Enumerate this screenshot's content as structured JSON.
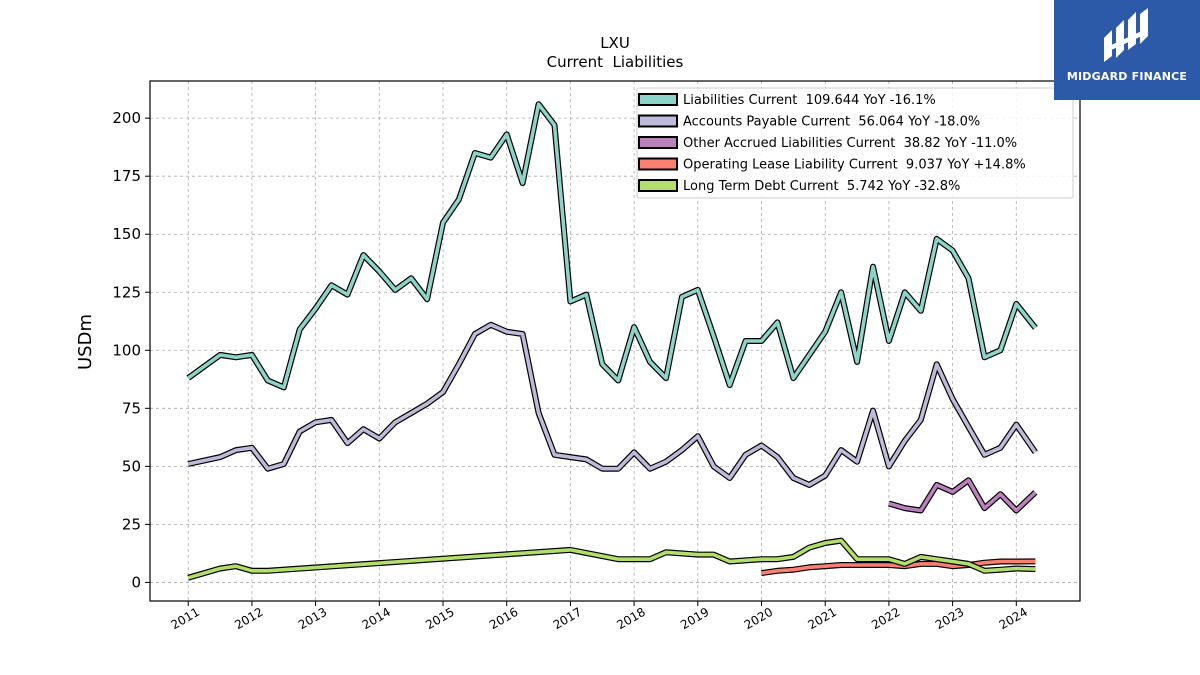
{
  "logo": {
    "text": "MIDGARD FINANCE",
    "background": "#2c5aa8"
  },
  "chart_data": {
    "type": "line",
    "title": "LXU",
    "subtitle": "Current  Liabilities",
    "xlabel": "",
    "ylabel": "USDm",
    "xlim": [
      2010.4,
      2025.0
    ],
    "ylim": [
      -8,
      216
    ],
    "x_ticks": [
      "2011",
      "2012",
      "2013",
      "2014",
      "2015",
      "2016",
      "2017",
      "2018",
      "2019",
      "2020",
      "2021",
      "2022",
      "2023",
      "2024"
    ],
    "y_ticks": [
      0,
      25,
      50,
      75,
      100,
      125,
      150,
      175,
      200
    ],
    "grid": true,
    "legend_position": "top-right",
    "series": [
      {
        "name": "Liabilities Current",
        "legend": "Liabilities Current  109.644 YoY -16.1%",
        "color": "#8dd3c7",
        "x": [
          2011.0,
          2011.5,
          2011.75,
          2012.0,
          2012.25,
          2012.5,
          2012.75,
          2013.0,
          2013.25,
          2013.5,
          2013.75,
          2014.0,
          2014.25,
          2014.5,
          2014.75,
          2015.0,
          2015.25,
          2015.5,
          2015.75,
          2016.0,
          2016.25,
          2016.5,
          2016.75,
          2017.0,
          2017.25,
          2017.5,
          2017.75,
          2018.0,
          2018.25,
          2018.5,
          2018.75,
          2019.0,
          2019.25,
          2019.5,
          2019.75,
          2020.0,
          2020.25,
          2020.5,
          2020.75,
          2021.0,
          2021.25,
          2021.5,
          2021.75,
          2022.0,
          2022.25,
          2022.5,
          2022.75,
          2023.0,
          2023.25,
          2023.5,
          2023.75,
          2024.0,
          2024.3
        ],
        "values": [
          88,
          98,
          97,
          98,
          87,
          84,
          109,
          118,
          128,
          124,
          141,
          134,
          126,
          131,
          122,
          155,
          165,
          185,
          183,
          193,
          172,
          206,
          197,
          121,
          124,
          94,
          87,
          110,
          95,
          88,
          123,
          126,
          106,
          85,
          104,
          104,
          112,
          88,
          98,
          108,
          125,
          95,
          136,
          104,
          125,
          117,
          148,
          143,
          131,
          97,
          100,
          120,
          109.644
        ]
      },
      {
        "name": "Accounts Payable Current",
        "legend": "Accounts Payable Current  56.064 YoY -18.0%",
        "color": "#bebada",
        "x": [
          2011.0,
          2011.5,
          2011.75,
          2012.0,
          2012.25,
          2012.5,
          2012.75,
          2013.0,
          2013.25,
          2013.5,
          2013.75,
          2014.0,
          2014.25,
          2014.5,
          2014.75,
          2015.0,
          2015.25,
          2015.5,
          2015.75,
          2016.0,
          2016.25,
          2016.5,
          2016.75,
          2017.0,
          2017.25,
          2017.5,
          2017.75,
          2018.0,
          2018.25,
          2018.5,
          2018.75,
          2019.0,
          2019.25,
          2019.5,
          2019.75,
          2020.0,
          2020.25,
          2020.5,
          2020.75,
          2021.0,
          2021.25,
          2021.5,
          2021.75,
          2022.0,
          2022.25,
          2022.5,
          2022.75,
          2023.0,
          2023.25,
          2023.5,
          2023.75,
          2024.0,
          2024.3
        ],
        "values": [
          51,
          54,
          57,
          58,
          49,
          51,
          65,
          69,
          70,
          60,
          66,
          62,
          69,
          73,
          77,
          82,
          94,
          107,
          111,
          108,
          107,
          73,
          55,
          54,
          53,
          49,
          49,
          56,
          49,
          52,
          57,
          63,
          50,
          45,
          55,
          59,
          54,
          45,
          42,
          46,
          57,
          52,
          74,
          50,
          61,
          70,
          94,
          79,
          67,
          55,
          58,
          68,
          56.064
        ]
      },
      {
        "name": "Other Accrued Liabilities Current",
        "legend": "Other Accrued Liabilities Current  38.82 YoY -11.0%",
        "color": "#bc80bd",
        "x": [
          2022.0,
          2022.25,
          2022.5,
          2022.75,
          2023.0,
          2023.25,
          2023.5,
          2023.75,
          2024.0,
          2024.3
        ],
        "values": [
          34,
          32,
          31,
          42,
          39,
          44,
          32,
          38,
          31,
          38.82
        ]
      },
      {
        "name": "Operating Lease Liability Current",
        "legend": "Operating Lease Liability Current  9.037 YoY +14.8%",
        "color": "#fb8072",
        "x": [
          2020.0,
          2020.25,
          2020.5,
          2020.75,
          2021.0,
          2021.25,
          2021.5,
          2021.75,
          2022.0,
          2022.25,
          2022.5,
          2022.75,
          2023.0,
          2023.25,
          2023.5,
          2023.75,
          2024.0,
          2024.3
        ],
        "values": [
          4,
          5,
          5.5,
          6.5,
          7,
          7.5,
          7.5,
          7.5,
          7.5,
          7,
          8,
          8,
          7,
          7.5,
          8.5,
          9,
          9,
          9.037
        ]
      },
      {
        "name": "Long Term Debt Current",
        "legend": "Long Term Debt Current  5.742 YoY -32.8%",
        "color": "#b3de69",
        "x": [
          2011.0,
          2011.5,
          2011.75,
          2012.0,
          2012.25,
          2017.0,
          2017.75,
          2018.25,
          2018.5,
          2019.0,
          2019.25,
          2019.5,
          2020.0,
          2020.25,
          2020.5,
          2020.75,
          2021.0,
          2021.25,
          2021.5,
          2021.75,
          2022.0,
          2022.25,
          2022.5,
          2022.75,
          2023.0,
          2023.25,
          2023.5,
          2023.75,
          2024.0,
          2024.3
        ],
        "values": [
          2,
          6,
          7,
          5,
          5,
          14,
          10,
          10,
          13,
          12,
          12,
          9,
          10,
          10,
          11,
          15,
          17,
          18,
          10,
          10,
          10,
          8,
          11,
          10,
          9,
          8,
          5,
          5.5,
          6,
          5.742
        ]
      }
    ]
  }
}
